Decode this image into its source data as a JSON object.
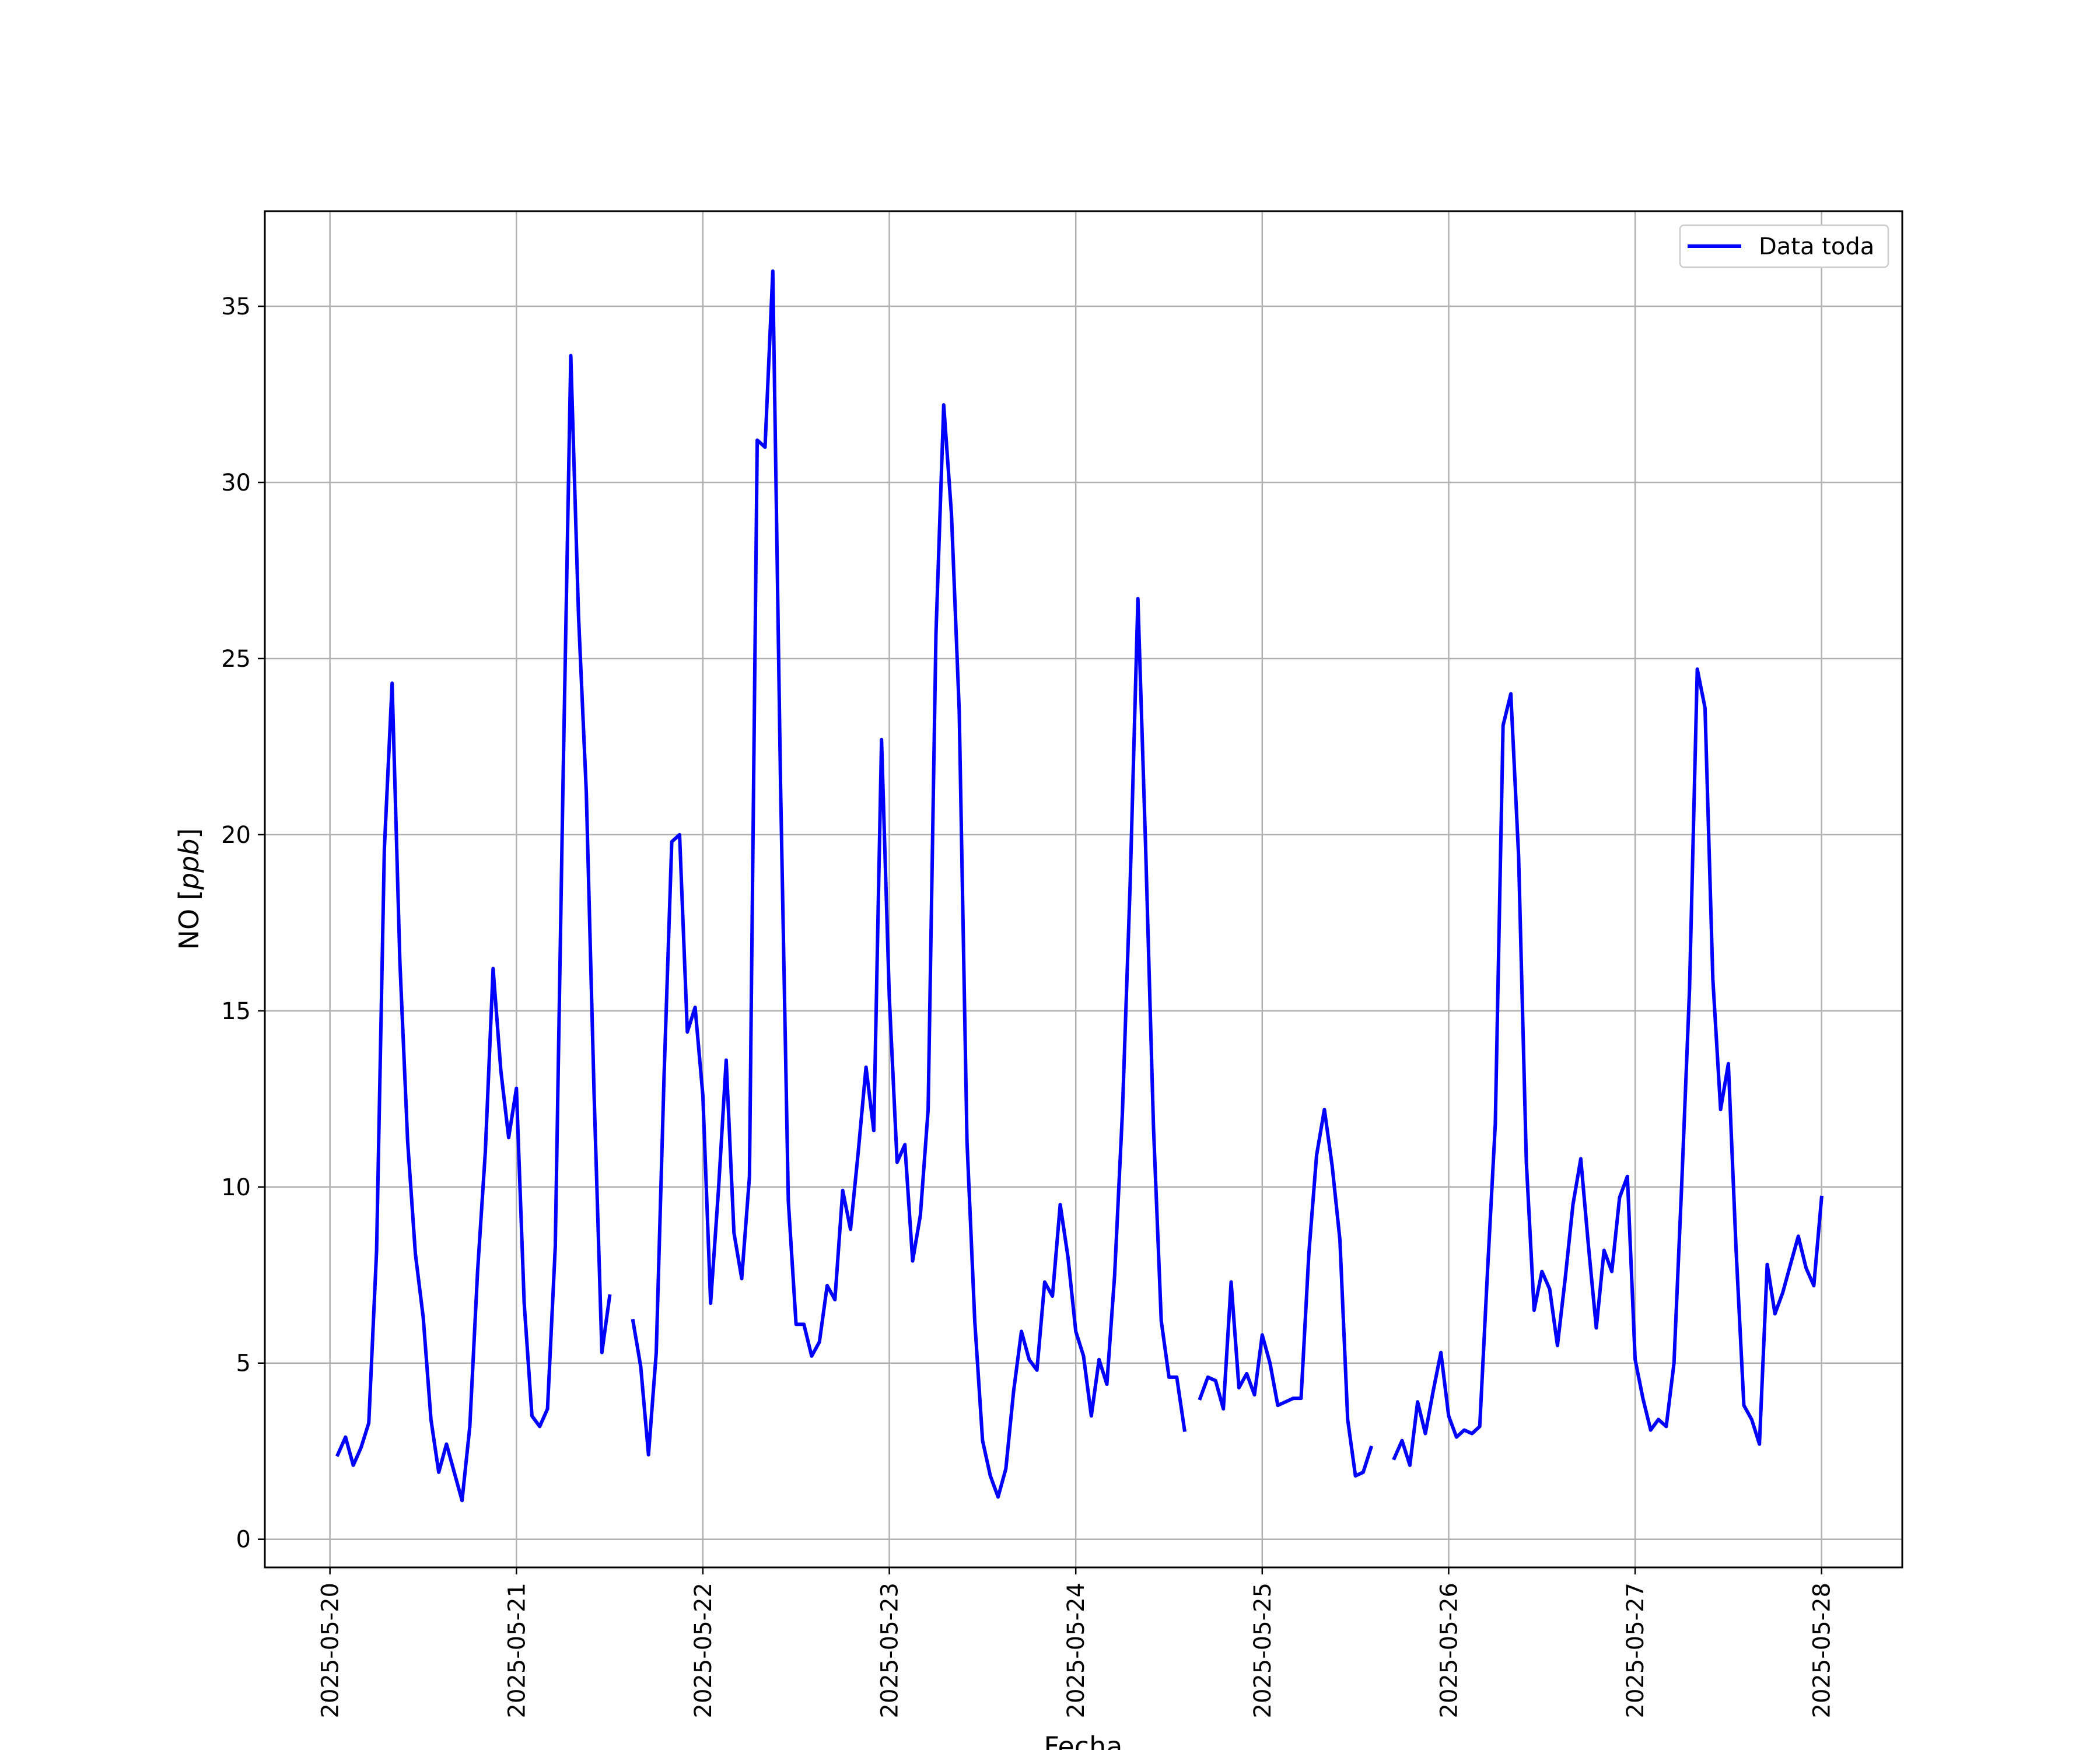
{
  "chart_data": {
    "type": "line",
    "title": "",
    "xlabel": "Fecha",
    "ylabel_main": "NO",
    "ylabel_unit": "ppb",
    "ylim": [
      -0.8,
      37.7
    ],
    "xlim": [
      "2025-05-19T15:37",
      "2025-05-28T10:23"
    ],
    "grid": true,
    "legend_position": "top-right",
    "x_ticks": [
      "2025-05-20",
      "2025-05-21",
      "2025-05-22",
      "2025-05-23",
      "2025-05-24",
      "2025-05-25",
      "2025-05-26",
      "2025-05-27",
      "2025-05-28"
    ],
    "y_ticks": [
      0,
      5,
      10,
      15,
      20,
      25,
      30,
      35
    ],
    "interval_hours": 1,
    "series": [
      {
        "name": "Data toda",
        "color": "#0000ff",
        "start": "2025-05-20T01:00",
        "values": [
          2.4,
          2.9,
          2.1,
          2.6,
          3.3,
          8.2,
          19.6,
          24.3,
          16.4,
          11.3,
          8.1,
          6.3,
          3.4,
          1.9,
          2.7,
          1.9,
          1.1,
          3.2,
          7.6,
          11.0,
          16.2,
          13.3,
          11.4,
          12.8,
          6.7,
          3.5,
          3.2,
          3.7,
          8.3,
          21.5,
          33.6,
          26.2,
          21.2,
          12.6,
          5.3,
          6.9,
          null,
          null,
          6.2,
          4.9,
          2.4,
          5.3,
          13.1,
          19.8,
          20.0,
          14.4,
          15.1,
          12.6,
          6.7,
          9.9,
          13.6,
          8.7,
          7.4,
          10.3,
          31.2,
          31.0,
          36.0,
          21.4,
          9.6,
          6.1,
          6.1,
          5.2,
          5.6,
          7.2,
          6.8,
          9.9,
          8.8,
          11.0,
          13.4,
          11.6,
          22.7,
          15.4,
          10.7,
          11.2,
          7.9,
          9.2,
          12.2,
          25.7,
          32.2,
          29.1,
          23.5,
          11.3,
          6.2,
          2.8,
          1.8,
          1.2,
          2.0,
          4.2,
          5.9,
          5.1,
          4.8,
          7.3,
          6.9,
          9.5,
          8.0,
          5.9,
          5.2,
          3.5,
          5.1,
          4.4,
          7.5,
          12.1,
          18.6,
          26.7,
          19.6,
          11.7,
          6.2,
          4.6,
          4.6,
          3.1,
          null,
          4.0,
          4.6,
          4.5,
          3.7,
          7.3,
          4.3,
          4.7,
          4.1,
          5.8,
          5.0,
          3.8,
          3.9,
          4.0,
          4.0,
          8.1,
          10.9,
          12.2,
          10.6,
          8.5,
          3.4,
          1.8,
          1.9,
          2.6,
          null,
          null,
          2.3,
          2.8,
          2.1,
          3.9,
          3.0,
          4.2,
          5.3,
          3.5,
          2.9,
          3.1,
          3.0,
          3.2,
          7.6,
          11.8,
          23.1,
          24.0,
          19.4,
          10.7,
          6.5,
          7.6,
          7.1,
          5.5,
          7.4,
          9.5,
          10.8,
          8.3,
          6.0,
          8.2,
          7.6,
          9.7,
          10.3,
          5.1,
          4.0,
          3.1,
          3.4,
          3.2,
          5.0,
          10.1,
          15.6,
          24.7,
          23.6,
          15.9,
          12.2,
          13.5,
          8.2,
          3.8,
          3.4,
          2.7,
          7.8,
          6.4,
          7.0,
          7.8,
          8.6,
          7.7,
          7.2,
          9.7
        ]
      }
    ]
  }
}
